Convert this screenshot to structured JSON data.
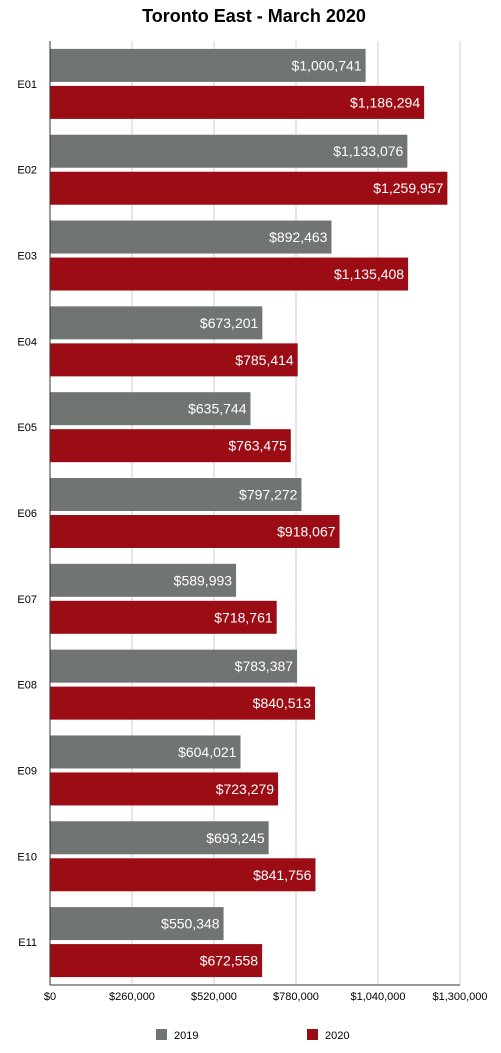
{
  "chart_data": {
    "type": "bar",
    "orientation": "horizontal",
    "title": "Toronto East - March 2020",
    "categories": [
      "E01",
      "E02",
      "E03",
      "E04",
      "E05",
      "E06",
      "E07",
      "E08",
      "E09",
      "E10",
      "E11"
    ],
    "series": [
      {
        "name": "2019",
        "color": "#717572",
        "values": [
          1000741,
          1133076,
          892463,
          673201,
          635744,
          797272,
          589993,
          783387,
          604021,
          693245,
          550348
        ],
        "labels": [
          "$1,000,741",
          "$1,133,076",
          "$892,463",
          "$673,201",
          "$635,744",
          "$797,272",
          "$589,993",
          "$783,387",
          "$604,021",
          "$693,245",
          "$550,348"
        ]
      },
      {
        "name": "2020",
        "color": "#9b0c14",
        "values": [
          1186294,
          1259957,
          1135408,
          785414,
          763475,
          918067,
          718761,
          840513,
          723279,
          841756,
          672558
        ],
        "labels": [
          "$1,186,294",
          "$1,259,957",
          "$1,135,408",
          "$785,414",
          "$763,475",
          "$918,067",
          "$718,761",
          "$840,513",
          "$723,279",
          "$841,756",
          "$672,558"
        ]
      }
    ],
    "xlim": [
      0,
      1300000
    ],
    "xticks": [
      0,
      260000,
      520000,
      780000,
      1040000,
      1300000
    ],
    "xtick_labels": [
      "$0",
      "$260,000",
      "$520,000",
      "$780,000",
      "$1,040,000",
      "$1,300,000"
    ],
    "grid": true,
    "legend_position": "bottom"
  }
}
